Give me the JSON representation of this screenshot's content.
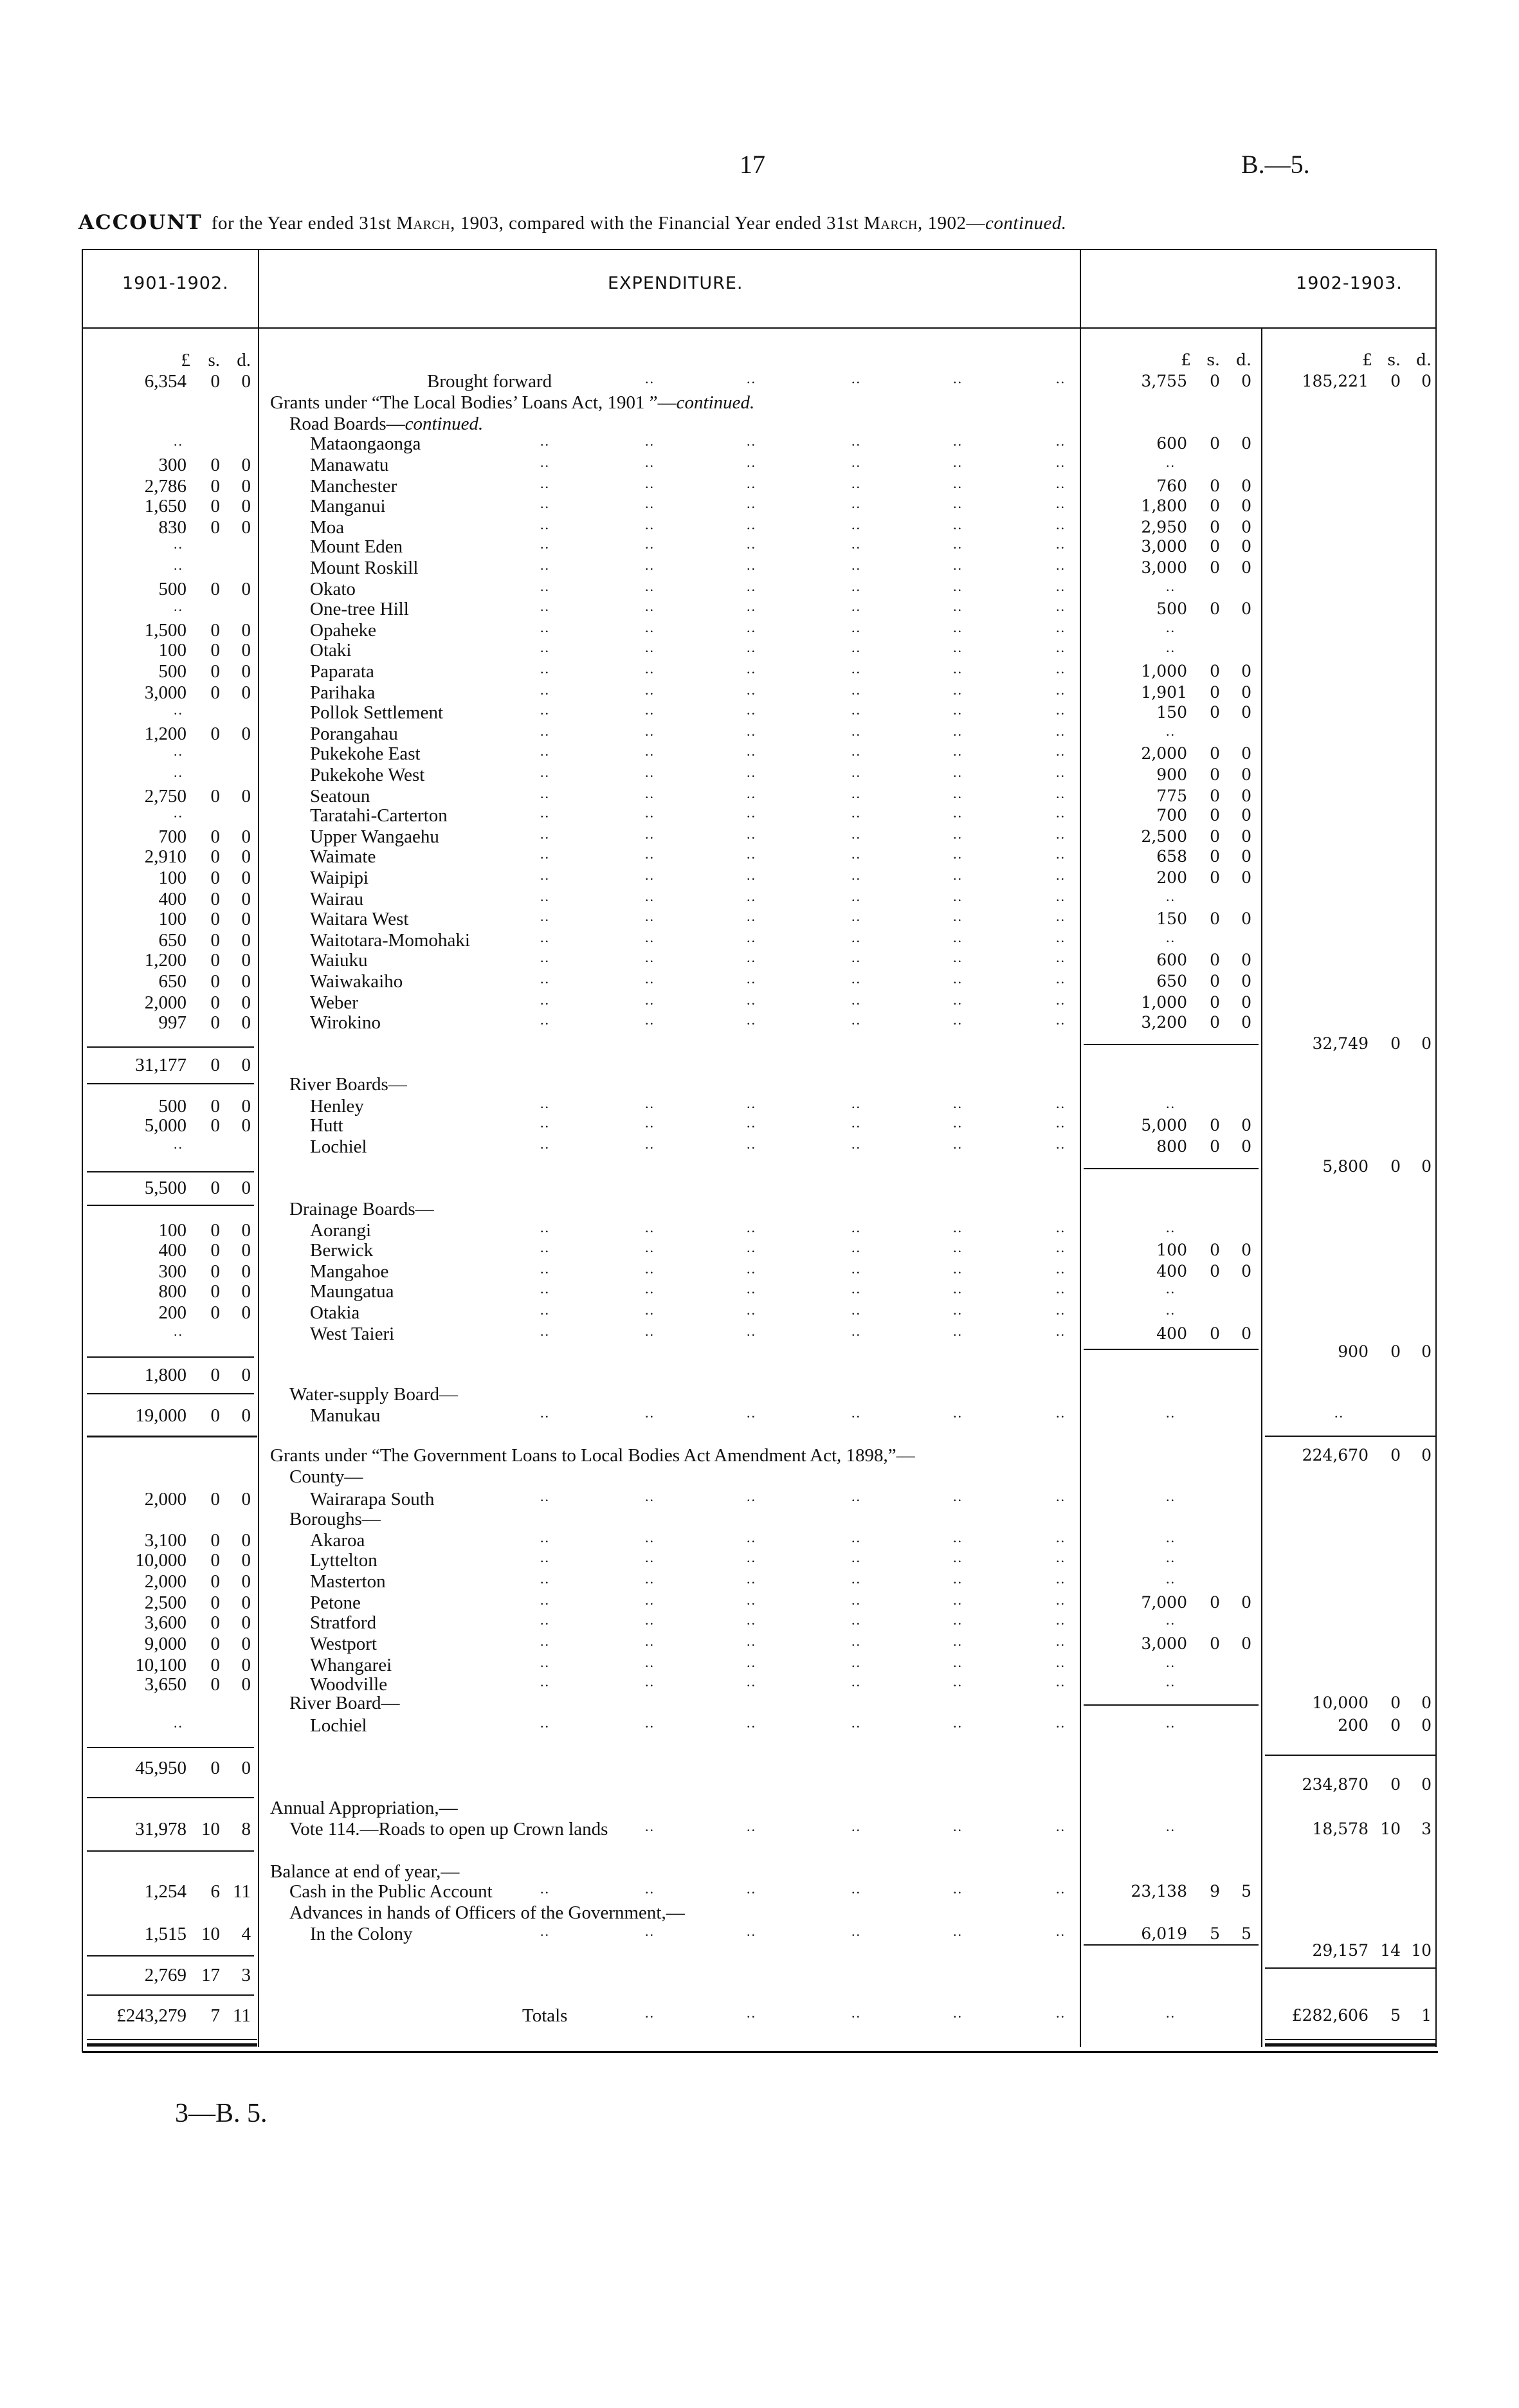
{
  "header": {
    "page_number": "17",
    "doc_ref": "B.—5.",
    "title_bold": "ACCOUNT",
    "title_a": "for the Year ended 31st",
    "title_month1": "March",
    "title_b": ", 1903, compared with the Financial Year ended 31st",
    "title_month2": "March",
    "title_c": ", 1902—",
    "title_italic": "continued."
  },
  "table": {
    "col_left": "1901-1902.",
    "col_center": "EXPENDITURE.",
    "col_right": "1902-1903.",
    "currency_heads": [
      "£",
      "s.",
      "d."
    ]
  },
  "rows": [
    {
      "label": "Brought forward",
      "level": "center",
      "left": [
        "6,354",
        "0",
        "0"
      ],
      "mid": [
        "3,755",
        "0",
        "0"
      ],
      "right": [
        "185,221",
        "0",
        "0"
      ],
      "leaders": true
    },
    {
      "label": "Grants under “The Local Bodies’ Loans Act, 1901 ”—",
      "italic": "continued.",
      "level": 0
    },
    {
      "label": "Road Boards—",
      "italic": "continued.",
      "level": 1
    },
    {
      "label": "Mataongaonga",
      "level": 2,
      "left": [
        ".."
      ],
      "mid": [
        "600",
        "0",
        "0"
      ],
      "leaders": true
    },
    {
      "label": "Manawatu",
      "level": 2,
      "left": [
        "300",
        "0",
        "0"
      ],
      "mid": [
        ".."
      ],
      "leaders": true
    },
    {
      "label": "Manchester",
      "level": 2,
      "left": [
        "2,786",
        "0",
        "0"
      ],
      "mid": [
        "760",
        "0",
        "0"
      ],
      "leaders": true
    },
    {
      "label": "Manganui",
      "level": 2,
      "left": [
        "1,650",
        "0",
        "0"
      ],
      "mid": [
        "1,800",
        "0",
        "0"
      ],
      "leaders": true
    },
    {
      "label": "Moa",
      "level": 2,
      "left": [
        "830",
        "0",
        "0"
      ],
      "mid": [
        "2,950",
        "0",
        "0"
      ],
      "leaders": true
    },
    {
      "label": "Mount Eden",
      "level": 2,
      "left": [
        ".."
      ],
      "mid": [
        "3,000",
        "0",
        "0"
      ],
      "leaders": true
    },
    {
      "label": "Mount Roskill",
      "level": 2,
      "left": [
        ".."
      ],
      "mid": [
        "3,000",
        "0",
        "0"
      ],
      "leaders": true
    },
    {
      "label": "Okato",
      "level": 2,
      "left": [
        "500",
        "0",
        "0"
      ],
      "mid": [
        ".."
      ],
      "leaders": true
    },
    {
      "label": "One-tree Hill",
      "level": 2,
      "left": [
        ".."
      ],
      "mid": [
        "500",
        "0",
        "0"
      ],
      "leaders": true
    },
    {
      "label": "Opaheke",
      "level": 2,
      "left": [
        "1,500",
        "0",
        "0"
      ],
      "mid": [
        ".."
      ],
      "leaders": true
    },
    {
      "label": "Otaki",
      "level": 2,
      "left": [
        "100",
        "0",
        "0"
      ],
      "mid": [
        ".."
      ],
      "leaders": true
    },
    {
      "label": "Paparata",
      "level": 2,
      "left": [
        "500",
        "0",
        "0"
      ],
      "mid": [
        "1,000",
        "0",
        "0"
      ],
      "leaders": true
    },
    {
      "label": "Parihaka",
      "level": 2,
      "left": [
        "3,000",
        "0",
        "0"
      ],
      "mid": [
        "1,901",
        "0",
        "0"
      ],
      "leaders": true
    },
    {
      "label": "Pollok Settlement",
      "level": 2,
      "left": [
        ".."
      ],
      "mid": [
        "150",
        "0",
        "0"
      ],
      "leaders": true
    },
    {
      "label": "Porangahau",
      "level": 2,
      "left": [
        "1,200",
        "0",
        "0"
      ],
      "mid": [
        ".."
      ],
      "leaders": true
    },
    {
      "label": "Pukekohe East",
      "level": 2,
      "left": [
        ".."
      ],
      "mid": [
        "2,000",
        "0",
        "0"
      ],
      "leaders": true
    },
    {
      "label": "Pukekohe West",
      "level": 2,
      "left": [
        ".."
      ],
      "mid": [
        "900",
        "0",
        "0"
      ],
      "leaders": true
    },
    {
      "label": "Seatoun",
      "level": 2,
      "left": [
        "2,750",
        "0",
        "0"
      ],
      "mid": [
        "775",
        "0",
        "0"
      ],
      "leaders": true
    },
    {
      "label": "Taratahi-Carterton",
      "level": 2,
      "left": [
        ".."
      ],
      "mid": [
        "700",
        "0",
        "0"
      ],
      "leaders": true
    },
    {
      "label": "Upper Wangaehu",
      "level": 2,
      "left": [
        "700",
        "0",
        "0"
      ],
      "mid": [
        "2,500",
        "0",
        "0"
      ],
      "leaders": true
    },
    {
      "label": "Waimate",
      "level": 2,
      "left": [
        "2,910",
        "0",
        "0"
      ],
      "mid": [
        "658",
        "0",
        "0"
      ],
      "leaders": true
    },
    {
      "label": "Waipipi",
      "level": 2,
      "left": [
        "100",
        "0",
        "0"
      ],
      "mid": [
        "200",
        "0",
        "0"
      ],
      "leaders": true
    },
    {
      "label": "Wairau",
      "level": 2,
      "left": [
        "400",
        "0",
        "0"
      ],
      "mid": [
        ".."
      ],
      "leaders": true
    },
    {
      "label": "Waitara West",
      "level": 2,
      "left": [
        "100",
        "0",
        "0"
      ],
      "mid": [
        "150",
        "0",
        "0"
      ],
      "leaders": true
    },
    {
      "label": "Waitotara-Momohaki",
      "level": 2,
      "left": [
        "650",
        "0",
        "0"
      ],
      "mid": [
        ".."
      ],
      "leaders": true
    },
    {
      "label": "Waiuku",
      "level": 2,
      "left": [
        "1,200",
        "0",
        "0"
      ],
      "mid": [
        "600",
        "0",
        "0"
      ],
      "leaders": true
    },
    {
      "label": "Waiwakaiho",
      "level": 2,
      "left": [
        "650",
        "0",
        "0"
      ],
      "mid": [
        "650",
        "0",
        "0"
      ],
      "leaders": true
    },
    {
      "label": "Weber",
      "level": 2,
      "left": [
        "2,000",
        "0",
        "0"
      ],
      "mid": [
        "1,000",
        "0",
        "0"
      ],
      "leaders": true
    },
    {
      "label": "Wirokino",
      "level": 2,
      "left": [
        "997",
        "0",
        "0"
      ],
      "mid": [
        "3,200",
        "0",
        "0"
      ],
      "leaders": true
    },
    {
      "right": [
        "32,749",
        "0",
        "0"
      ]
    },
    {
      "left": [
        "31,177",
        "0",
        "0"
      ]
    },
    {
      "label": "River Boards—",
      "level": 1
    },
    {
      "label": "Henley",
      "level": 2,
      "left": [
        "500",
        "0",
        "0"
      ],
      "mid": [
        ".."
      ],
      "leaders": true
    },
    {
      "label": "Hutt",
      "level": 2,
      "left": [
        "5,000",
        "0",
        "0"
      ],
      "mid": [
        "5,000",
        "0",
        "0"
      ],
      "leaders": true
    },
    {
      "label": "Lochiel",
      "level": 2,
      "left": [
        ".."
      ],
      "mid": [
        "800",
        "0",
        "0"
      ],
      "leaders": true
    },
    {
      "right": [
        "5,800",
        "0",
        "0"
      ]
    },
    {
      "left": [
        "5,500",
        "0",
        "0"
      ]
    },
    {
      "label": "Drainage Boards—",
      "level": 1
    },
    {
      "label": "Aorangi",
      "level": 2,
      "left": [
        "100",
        "0",
        "0"
      ],
      "mid": [
        ".."
      ],
      "leaders": true
    },
    {
      "label": "Berwick",
      "level": 2,
      "left": [
        "400",
        "0",
        "0"
      ],
      "mid": [
        "100",
        "0",
        "0"
      ],
      "leaders": true
    },
    {
      "label": "Mangahoe",
      "level": 2,
      "left": [
        "300",
        "0",
        "0"
      ],
      "mid": [
        "400",
        "0",
        "0"
      ],
      "leaders": true
    },
    {
      "label": "Maungatua",
      "level": 2,
      "left": [
        "800",
        "0",
        "0"
      ],
      "mid": [
        ".."
      ],
      "leaders": true
    },
    {
      "label": "Otakia",
      "level": 2,
      "left": [
        "200",
        "0",
        "0"
      ],
      "mid": [
        ".."
      ],
      "leaders": true
    },
    {
      "label": "West Taieri",
      "level": 2,
      "left": [
        ".."
      ],
      "mid": [
        "400",
        "0",
        "0"
      ],
      "leaders": true
    },
    {
      "right": [
        "900",
        "0",
        "0"
      ]
    },
    {
      "left": [
        "1,800",
        "0",
        "0"
      ]
    },
    {
      "label": "Water-supply Board—",
      "level": 1
    },
    {
      "label": "Manukau",
      "level": 2,
      "left": [
        "19,000",
        "0",
        "0"
      ],
      "mid": [
        ".."
      ],
      "right": [
        ".."
      ],
      "leaders": true
    },
    {
      "label": "Grants under “The Government Loans to Local Bodies Act Amendment Act, 1898,”—",
      "level": 0,
      "right": [
        "224,670",
        "0",
        "0"
      ]
    },
    {
      "label": "County—",
      "level": 1
    },
    {
      "label": "Wairarapa South",
      "level": 2,
      "left": [
        "2,000",
        "0",
        "0"
      ],
      "mid": [
        ".."
      ],
      "leaders": true
    },
    {
      "label": "Boroughs—",
      "level": 1
    },
    {
      "label": "Akaroa",
      "level": 2,
      "left": [
        "3,100",
        "0",
        "0"
      ],
      "mid": [
        ".."
      ],
      "leaders": true
    },
    {
      "label": "Lyttelton",
      "level": 2,
      "left": [
        "10,000",
        "0",
        "0"
      ],
      "mid": [
        ".."
      ],
      "leaders": true
    },
    {
      "label": "Masterton",
      "level": 2,
      "left": [
        "2,000",
        "0",
        "0"
      ],
      "mid": [
        ".."
      ],
      "leaders": true
    },
    {
      "label": "Petone",
      "level": 2,
      "left": [
        "2,500",
        "0",
        "0"
      ],
      "mid": [
        "7,000",
        "0",
        "0"
      ],
      "leaders": true
    },
    {
      "label": "Stratford",
      "level": 2,
      "left": [
        "3,600",
        "0",
        "0"
      ],
      "mid": [
        ".."
      ],
      "leaders": true
    },
    {
      "label": "Westport",
      "level": 2,
      "left": [
        "9,000",
        "0",
        "0"
      ],
      "mid": [
        "3,000",
        "0",
        "0"
      ],
      "leaders": true
    },
    {
      "label": "Whangarei",
      "level": 2,
      "left": [
        "10,100",
        "0",
        "0"
      ],
      "mid": [
        ".."
      ],
      "leaders": true
    },
    {
      "label": "Woodville",
      "level": 2,
      "left": [
        "3,650",
        "0",
        "0"
      ],
      "mid": [
        ".."
      ],
      "leaders": true
    },
    {
      "label": "River Board—",
      "level": 1,
      "right": [
        "10,000",
        "0",
        "0"
      ]
    },
    {
      "label": "Lochiel",
      "level": 2,
      "left": [
        ".."
      ],
      "mid": [
        ".."
      ],
      "right": [
        "200",
        "0",
        "0"
      ],
      "leaders": true
    },
    {
      "left": [
        "45,950",
        "0",
        "0"
      ]
    },
    {
      "right": [
        "234,870",
        "0",
        "0"
      ]
    },
    {
      "label": "Annual Appropriation,—",
      "level": 0
    },
    {
      "label": "Vote 114.—Roads to open up Crown lands",
      "level": 1,
      "left": [
        "31,978",
        "10",
        "8"
      ],
      "mid": [
        ".."
      ],
      "right": [
        "18,578",
        "10",
        "3"
      ],
      "leaders": true
    },
    {
      "label": "Balance at end of year,—",
      "level": 0
    },
    {
      "label": "Cash in the Public Account",
      "level": 1,
      "left": [
        "1,254",
        "6",
        "11"
      ],
      "mid": [
        "23,138",
        "9",
        "5"
      ],
      "leaders": true
    },
    {
      "label": "Advances in hands of Officers of the Government,—",
      "level": 1
    },
    {
      "label": "In the Colony",
      "level": 2,
      "left": [
        "1,515",
        "10",
        "4"
      ],
      "mid": [
        "6,019",
        "5",
        "5"
      ],
      "leaders": true
    },
    {
      "right": [
        "29,157",
        "14",
        "10"
      ]
    },
    {
      "left": [
        "2,769",
        "17",
        "3"
      ]
    },
    {
      "label": "Totals",
      "level": "center",
      "left": [
        "£243,279",
        "7",
        "11"
      ],
      "mid": [
        ".."
      ],
      "right": [
        "£282,606",
        "5",
        "1"
      ],
      "leaders": true
    }
  ],
  "footer": {
    "signature": "3—B. 5."
  }
}
